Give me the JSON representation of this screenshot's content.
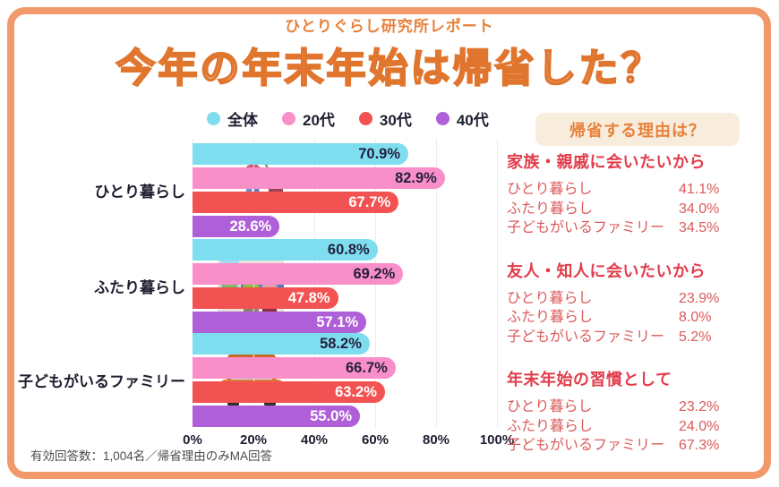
{
  "header": {
    "report_label": "ひとりぐらし研究所レポート",
    "title": "今年の年末年始は帰省した？"
  },
  "colors": {
    "frame_orange": "#F2996B",
    "title_fill": "#FAE8D0",
    "title_stroke": "#E0752E",
    "accent_orange": "#E8813C",
    "badge_bg": "#F8EDDD",
    "section_heading_red": "#E23C4B",
    "section_text_red": "#DC5A5A",
    "dark_text": "#1E1E30",
    "grid": "#EBEBF0"
  },
  "chart_data": {
    "type": "bar",
    "orientation": "horizontal",
    "title": "今年の年末年始は帰省した？",
    "categories": [
      "ひとり暮らし",
      "ふたり暮らし",
      "子どもがいるファミリー"
    ],
    "series": [
      {
        "name": "全体",
        "color": "#7EDEEF",
        "label_color": "#241F3E",
        "values": [
          70.9,
          60.8,
          58.2
        ]
      },
      {
        "name": "20代",
        "color": "#F98FC9",
        "label_color": "#241F3E",
        "values": [
          82.9,
          69.2,
          66.7
        ]
      },
      {
        "name": "30代",
        "color": "#F25252",
        "label_color": "#FFFFFF",
        "values": [
          67.7,
          47.8,
          63.2
        ]
      },
      {
        "name": "40代",
        "color": "#AF5FD8",
        "label_color": "#FFFFFF",
        "values": [
          28.6,
          57.1,
          55.0
        ]
      }
    ],
    "x_ticks": [
      "0%",
      "20%",
      "40%",
      "60%",
      "80%",
      "100%"
    ],
    "xlim": [
      0,
      100
    ],
    "grid": true,
    "legend_position": "top",
    "value_suffix": "%"
  },
  "reasons_panel": {
    "title": "帰省する理由は？",
    "sections": [
      {
        "heading": "家族・親戚に会いたいから",
        "rows": [
          {
            "label": "ひとり暮らし",
            "value": "41.1%"
          },
          {
            "label": "ふたり暮らし",
            "value": "34.0%"
          },
          {
            "label": "子どもがいるファミリー",
            "value": "34.5%"
          }
        ]
      },
      {
        "heading": "友人・知人に会いたいから",
        "rows": [
          {
            "label": "ひとり暮らし",
            "value": "23.9%"
          },
          {
            "label": "ふたり暮らし",
            "value": "8.0%"
          },
          {
            "label": "子どもがいるファミリー",
            "value": "5.2%"
          }
        ]
      },
      {
        "heading": "年末年始の習慣として",
        "rows": [
          {
            "label": "ひとり暮らし",
            "value": "23.2%"
          },
          {
            "label": "ふたり暮らし",
            "value": "24.0%"
          },
          {
            "label": "子どもがいるファミリー",
            "value": "67.3%"
          }
        ]
      }
    ]
  },
  "footer": {
    "note": "有効回答数：1,004名／帰省理由のみMA回答"
  },
  "illustrations": [
    "person-with-suitcase-icon",
    "couple-on-train-icon",
    "family-in-car-icon"
  ]
}
